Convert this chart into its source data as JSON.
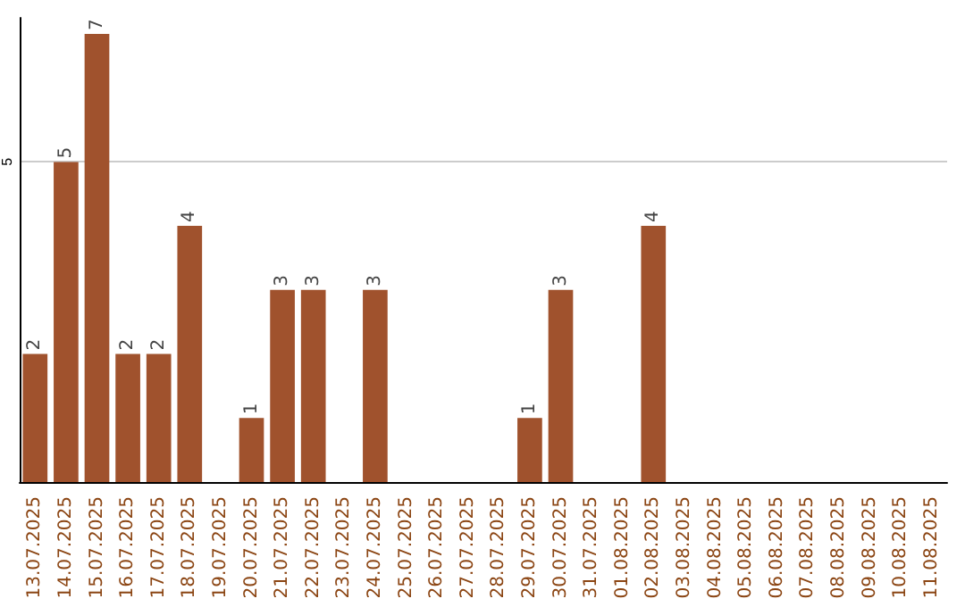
{
  "chart_data": {
    "type": "bar",
    "categories": [
      "13.07.2025",
      "14.07.2025",
      "15.07.2025",
      "16.07.2025",
      "17.07.2025",
      "18.07.2025",
      "19.07.2025",
      "20.07.2025",
      "21.07.2025",
      "22.07.2025",
      "23.07.2025",
      "24.07.2025",
      "25.07.2025",
      "26.07.2025",
      "27.07.2025",
      "28.07.2025",
      "29.07.2025",
      "30.07.2025",
      "31.07.2025",
      "01.08.2025",
      "02.08.2025",
      "03.08.2025",
      "04.08.2025",
      "05.08.2025",
      "06.08.2025",
      "07.08.2025",
      "08.08.2025",
      "09.08.2025",
      "10.08.2025",
      "11.08.2025"
    ],
    "values": [
      2,
      5,
      7,
      2,
      2,
      4,
      0,
      1,
      3,
      3,
      0,
      3,
      0,
      0,
      0,
      0,
      1,
      3,
      0,
      0,
      4,
      0,
      0,
      0,
      0,
      0,
      0,
      0,
      0,
      0
    ],
    "value_labels": [
      "2",
      "5",
      "7",
      "2",
      "2",
      "4",
      null,
      "1",
      "3",
      "3",
      null,
      "3",
      null,
      null,
      null,
      null,
      "1",
      "3",
      null,
      null,
      "4",
      null,
      null,
      null,
      null,
      null,
      null,
      null,
      null,
      null
    ],
    "color": "#a0522d",
    "ylim": [
      0,
      7.25
    ],
    "yticks": [
      5
    ],
    "grid": "y"
  }
}
